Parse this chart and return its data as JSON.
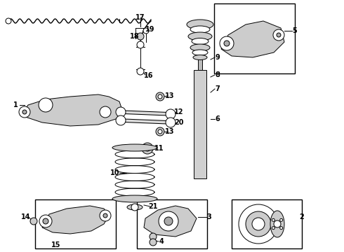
{
  "bg_color": "#ffffff",
  "lc": "#000000",
  "gray_part": "#aaaaaa",
  "gray_fill": "#cccccc",
  "lw_thin": 0.7,
  "lw_med": 1.0,
  "lw_thick": 1.5,
  "fig_w": 4.9,
  "fig_h": 3.6,
  "dpi": 100
}
